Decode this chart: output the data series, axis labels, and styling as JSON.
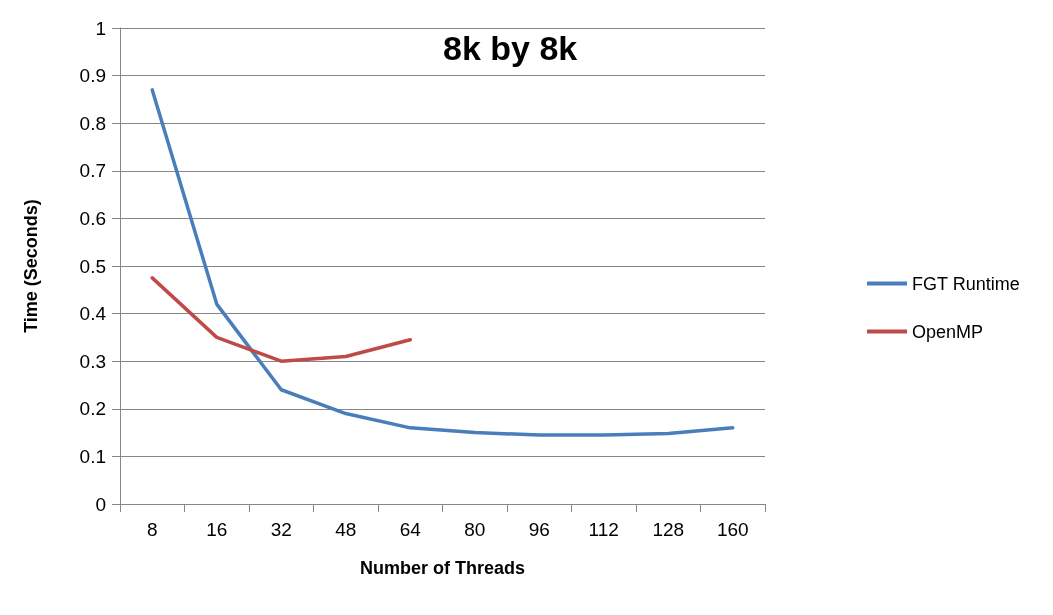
{
  "chart_data": {
    "type": "line",
    "title": "8k by 8k",
    "xlabel": "Number of Threads",
    "ylabel": "Time (Seconds)",
    "categories": [
      "8",
      "16",
      "32",
      "48",
      "64",
      "80",
      "96",
      "112",
      "128",
      "160"
    ],
    "series": [
      {
        "name": "FGT Runtime",
        "color": "#4a7ebb",
        "values": [
          0.87,
          0.42,
          0.24,
          0.19,
          0.16,
          0.15,
          0.145,
          0.145,
          0.148,
          0.16
        ]
      },
      {
        "name": "OpenMP",
        "color": "#be4b48",
        "values": [
          0.475,
          0.35,
          0.3,
          0.31,
          0.345,
          null,
          null,
          null,
          null,
          null
        ]
      }
    ],
    "ylim": [
      0,
      1
    ],
    "yticks": [
      0,
      0.1,
      0.2,
      0.3,
      0.4,
      0.5,
      0.6,
      0.7,
      0.8,
      0.9,
      1
    ],
    "grid": "y",
    "legend": "right",
    "marker": "none",
    "line_style": "solid"
  }
}
